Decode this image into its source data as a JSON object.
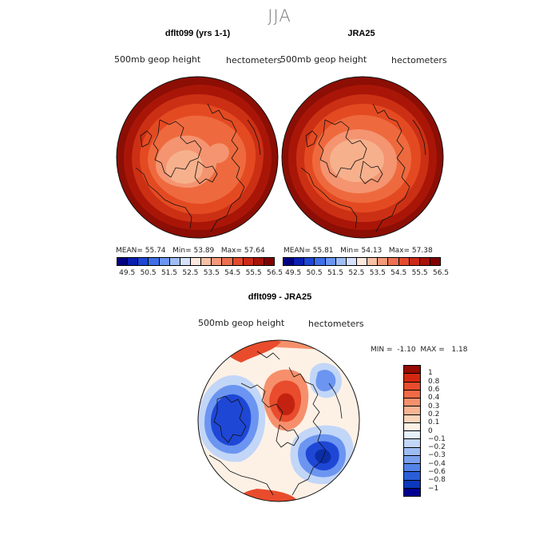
{
  "season_title": "JJA",
  "panels": [
    {
      "title": "dflt099 (yrs 1-1)",
      "variable": "500mb geop height",
      "units": "hectometers",
      "mean_label": "MEAN=",
      "mean": "55.74",
      "min_label": "Min=",
      "min": "53.89",
      "max_label": "Max=",
      "max": "57.64"
    },
    {
      "title": "JRA25",
      "variable": "500mb geop height",
      "units": "hectometers",
      "mean_label": "MEAN=",
      "mean": "55.81",
      "min_label": "Min=",
      "min": "54.13",
      "max_label": "Max=",
      "max": "57.38"
    }
  ],
  "abs_colorbar": {
    "colors": [
      "#000080",
      "#0a1fb0",
      "#1f47d6",
      "#3f6fe8",
      "#6b95f0",
      "#9fbef6",
      "#d4e2fb",
      "#fde8dc",
      "#f8c0a4",
      "#f4997a",
      "#ee7050",
      "#e44a2e",
      "#cc2a18",
      "#a81208",
      "#800000"
    ],
    "labels": [
      "49.5",
      "50.5",
      "51.5",
      "52.5",
      "53.5",
      "54.5",
      "55.5",
      "56.5"
    ]
  },
  "diff": {
    "title": "dflt099 - JRA25",
    "variable": "500mb geop height",
    "units": "hectometers",
    "min_label": "MIN =",
    "min": "-1.10",
    "max_label": "MAX =",
    "max": "1.18"
  },
  "diff_colorbar": {
    "colors": [
      "#960a00",
      "#d22812",
      "#e84c2c",
      "#f26a44",
      "#f6906c",
      "#f9b494",
      "#fcd4bc",
      "#fdf1e6",
      "#e6effc",
      "#c2d6f8",
      "#9ebcf3",
      "#7aa0ee",
      "#5482e8",
      "#2a5ed8",
      "#0b38bc",
      "#000090"
    ],
    "labels": [
      "1",
      "0.8",
      "0.6",
      "0.4",
      "0.3",
      "0.2",
      "0.1",
      "0",
      "−0.1",
      "−0.2",
      "−0.3",
      "−0.4",
      "−0.6",
      "−0.8",
      "−1"
    ]
  },
  "map_colors": {
    "ocean_edge": "#8c0e04",
    "ring_dark": "#a91608",
    "ring_mid": "#cc3014",
    "ring_light": "#e44a22",
    "core": "#ee6a3e",
    "core_light": "#f49470",
    "core_pale": "#f7b08c",
    "coast": "#111111",
    "diff_bg": "#fdf1e6",
    "diff_red_light": "#f6906c",
    "diff_red": "#e84c2c",
    "diff_red_dark": "#c42210",
    "diff_blue_light": "#c2d6f8",
    "diff_blue": "#6b95f0",
    "diff_blue_dark": "#1f47d6",
    "diff_blue_deep": "#0b2da8"
  }
}
